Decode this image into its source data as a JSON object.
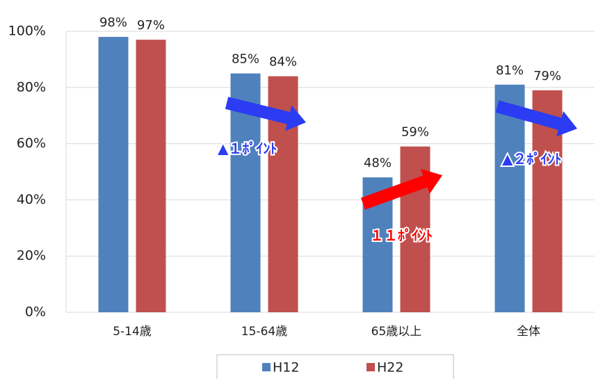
{
  "chart_data": {
    "type": "bar",
    "categories": [
      "5-14歳",
      "15-64歳",
      "65歳以上",
      "全体"
    ],
    "series": [
      {
        "name": "H12",
        "color": "#4f81bd",
        "values": [
          98,
          85,
          48,
          81
        ],
        "value_labels": [
          "98%",
          "85%",
          "48%",
          "81%"
        ]
      },
      {
        "name": "H22",
        "color": "#c0504d",
        "values": [
          97,
          84,
          59,
          79
        ],
        "value_labels": [
          "97%",
          "84%",
          "59%",
          "79%"
        ]
      }
    ],
    "ylim": [
      0,
      100
    ],
    "yticks": [
      {
        "value": 0,
        "label": "0%"
      },
      {
        "value": 20,
        "label": "20%"
      },
      {
        "value": 40,
        "label": "40%"
      },
      {
        "value": 60,
        "label": "60%"
      },
      {
        "value": 80,
        "label": "80%"
      },
      {
        "value": 100,
        "label": "100%"
      }
    ],
    "grid": true,
    "legend": "bottom",
    "annotations": [
      {
        "text": "▲１ﾎﾟｲﾝﾄ",
        "color": "#2b3cf2"
      },
      {
        "text": "１１ﾎﾟｲﾝﾄ",
        "color": "#ff0000"
      },
      {
        "text": "▲２ﾎﾟｲﾝﾄ",
        "color": "#2b3cf2"
      }
    ]
  }
}
